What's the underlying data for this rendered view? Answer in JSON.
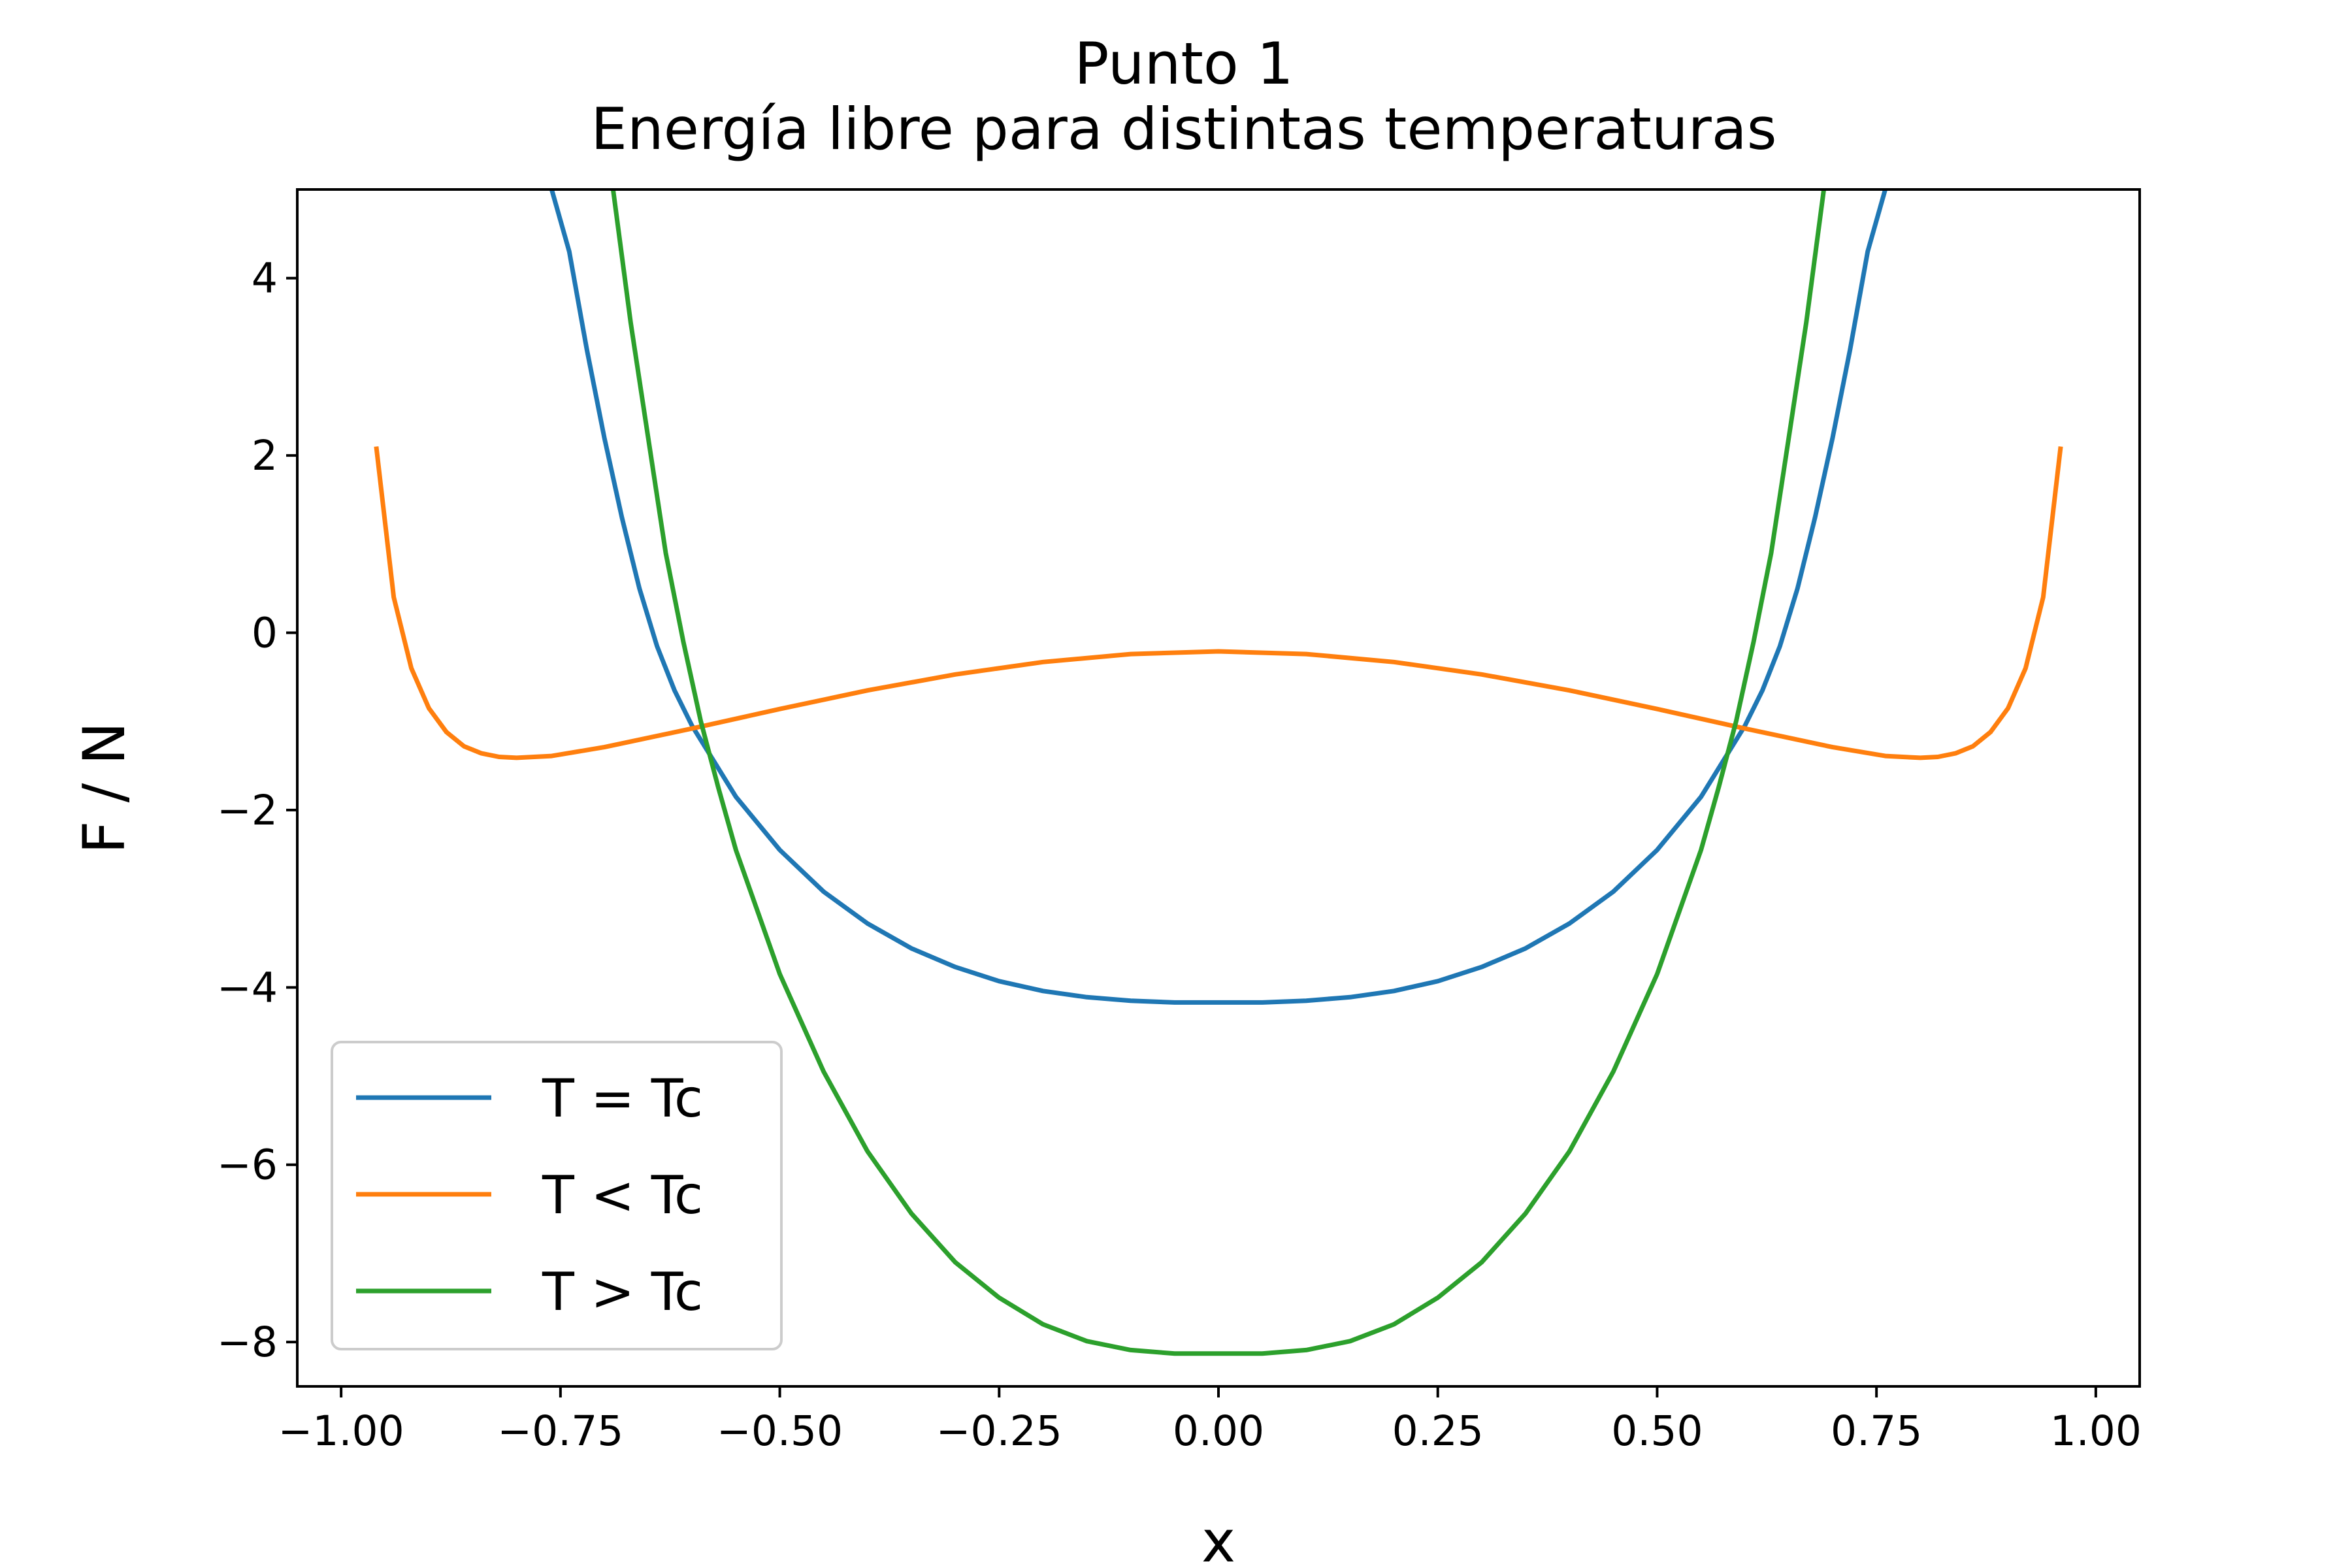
{
  "chart_data": {
    "type": "line",
    "title": "Punto 1",
    "subtitle": "Energía libre para distintas temperaturas",
    "xlabel": "x",
    "ylabel": "F / N",
    "xlim": [
      -1.05,
      1.05
    ],
    "ylim": [
      -8.5,
      5.0
    ],
    "xticks": [
      -1.0,
      -0.75,
      -0.5,
      -0.25,
      0.0,
      0.25,
      0.5,
      0.75,
      1.0
    ],
    "xtick_labels": [
      "−1.00",
      "−0.75",
      "−0.50",
      "−0.25",
      "0.00",
      "0.25",
      "0.50",
      "0.75",
      "1.00"
    ],
    "yticks": [
      4,
      2,
      0,
      -2,
      -4,
      -6,
      -8
    ],
    "ytick_labels": [
      "4",
      "2",
      "0",
      "−2",
      "−4",
      "−6",
      "−8"
    ],
    "grid": false,
    "legend_position": "lower-left",
    "series": [
      {
        "name": "T = Tc",
        "color": "#1f77b4",
        "points": [
          [
            -0.76,
            5.0
          ],
          [
            -0.74,
            4.3
          ],
          [
            -0.72,
            3.2
          ],
          [
            -0.7,
            2.2
          ],
          [
            -0.68,
            1.3
          ],
          [
            -0.66,
            0.5
          ],
          [
            -0.64,
            -0.15
          ],
          [
            -0.62,
            -0.65
          ],
          [
            -0.6,
            -1.05
          ],
          [
            -0.55,
            -1.85
          ],
          [
            -0.5,
            -2.45
          ],
          [
            -0.45,
            -2.92
          ],
          [
            -0.4,
            -3.28
          ],
          [
            -0.35,
            -3.56
          ],
          [
            -0.3,
            -3.77
          ],
          [
            -0.25,
            -3.93
          ],
          [
            -0.2,
            -4.04
          ],
          [
            -0.15,
            -4.11
          ],
          [
            -0.1,
            -4.15
          ],
          [
            -0.05,
            -4.17
          ],
          [
            0.0,
            -4.17
          ],
          [
            0.05,
            -4.17
          ],
          [
            0.1,
            -4.15
          ],
          [
            0.15,
            -4.11
          ],
          [
            0.2,
            -4.04
          ],
          [
            0.25,
            -3.93
          ],
          [
            0.3,
            -3.77
          ],
          [
            0.35,
            -3.56
          ],
          [
            0.4,
            -3.28
          ],
          [
            0.45,
            -2.92
          ],
          [
            0.5,
            -2.45
          ],
          [
            0.55,
            -1.85
          ],
          [
            0.6,
            -1.05
          ],
          [
            0.62,
            -0.65
          ],
          [
            0.64,
            -0.15
          ],
          [
            0.66,
            0.5
          ],
          [
            0.68,
            1.3
          ],
          [
            0.7,
            2.2
          ],
          [
            0.72,
            3.2
          ],
          [
            0.74,
            4.3
          ],
          [
            0.76,
            5.0
          ]
        ]
      },
      {
        "name": "T < Tc",
        "color": "#ff7f0e",
        "points": [
          [
            -0.96,
            2.1
          ],
          [
            -0.94,
            0.4
          ],
          [
            -0.92,
            -0.4
          ],
          [
            -0.9,
            -0.85
          ],
          [
            -0.88,
            -1.12
          ],
          [
            -0.86,
            -1.28
          ],
          [
            -0.84,
            -1.36
          ],
          [
            -0.82,
            -1.4
          ],
          [
            -0.8,
            -1.41
          ],
          [
            -0.76,
            -1.39
          ],
          [
            -0.7,
            -1.29
          ],
          [
            -0.6,
            -1.08
          ],
          [
            -0.5,
            -0.86
          ],
          [
            -0.4,
            -0.65
          ],
          [
            -0.3,
            -0.47
          ],
          [
            -0.2,
            -0.33
          ],
          [
            -0.1,
            -0.24
          ],
          [
            0.0,
            -0.21
          ],
          [
            0.1,
            -0.24
          ],
          [
            0.2,
            -0.33
          ],
          [
            0.3,
            -0.47
          ],
          [
            0.4,
            -0.65
          ],
          [
            0.5,
            -0.86
          ],
          [
            0.6,
            -1.08
          ],
          [
            0.7,
            -1.29
          ],
          [
            0.76,
            -1.39
          ],
          [
            0.8,
            -1.41
          ],
          [
            0.82,
            -1.4
          ],
          [
            0.84,
            -1.36
          ],
          [
            0.86,
            -1.28
          ],
          [
            0.88,
            -1.12
          ],
          [
            0.9,
            -0.85
          ],
          [
            0.92,
            -0.4
          ],
          [
            0.94,
            0.4
          ],
          [
            0.96,
            2.1
          ]
        ]
      },
      {
        "name": "T > Tc",
        "color": "#2ca02c",
        "points": [
          [
            -0.69,
            5.0
          ],
          [
            -0.67,
            3.5
          ],
          [
            -0.65,
            2.2
          ],
          [
            -0.63,
            0.9
          ],
          [
            -0.61,
            -0.1
          ],
          [
            -0.59,
            -1.0
          ],
          [
            -0.57,
            -1.75
          ],
          [
            -0.55,
            -2.45
          ],
          [
            -0.5,
            -3.85
          ],
          [
            -0.45,
            -4.95
          ],
          [
            -0.4,
            -5.85
          ],
          [
            -0.35,
            -6.55
          ],
          [
            -0.3,
            -7.1
          ],
          [
            -0.25,
            -7.5
          ],
          [
            -0.2,
            -7.8
          ],
          [
            -0.15,
            -7.99
          ],
          [
            -0.1,
            -8.09
          ],
          [
            -0.05,
            -8.13
          ],
          [
            0.0,
            -8.13
          ],
          [
            0.05,
            -8.13
          ],
          [
            0.1,
            -8.09
          ],
          [
            0.15,
            -7.99
          ],
          [
            0.2,
            -7.8
          ],
          [
            0.25,
            -7.5
          ],
          [
            0.3,
            -7.1
          ],
          [
            0.35,
            -6.55
          ],
          [
            0.4,
            -5.85
          ],
          [
            0.45,
            -4.95
          ],
          [
            0.5,
            -3.85
          ],
          [
            0.55,
            -2.45
          ],
          [
            0.57,
            -1.75
          ],
          [
            0.59,
            -1.0
          ],
          [
            0.61,
            -0.1
          ],
          [
            0.63,
            0.9
          ],
          [
            0.65,
            2.2
          ],
          [
            0.67,
            3.5
          ],
          [
            0.69,
            5.0
          ]
        ]
      }
    ]
  }
}
